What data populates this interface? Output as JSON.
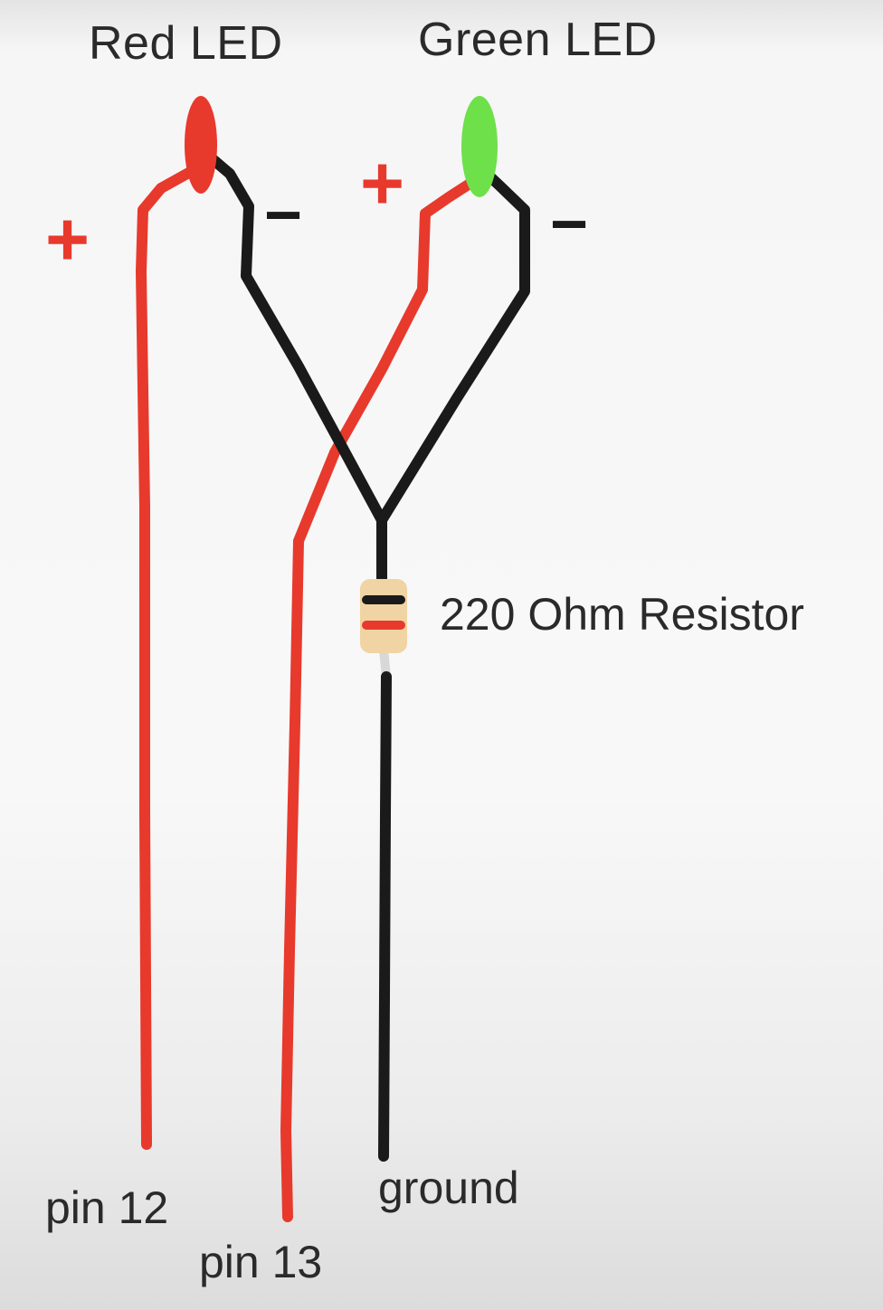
{
  "labels": {
    "red_led": "Red LED",
    "green_led": "Green LED",
    "resistor": "220 Ohm Resistor",
    "pin12": "pin 12",
    "pin13": "pin 13",
    "ground": "ground"
  },
  "signs": {
    "red_plus": "+",
    "red_minus": "−",
    "green_plus": "+",
    "green_minus": "−"
  },
  "colors": {
    "background": "#f6f6f6",
    "wire_positive": "#e8392d",
    "wire_negative": "#1a1a1a",
    "red_led": "#e8392d",
    "green_led": "#6ee04a",
    "resistor_body": "#f1d4a3",
    "text": "#2a2a2a"
  }
}
